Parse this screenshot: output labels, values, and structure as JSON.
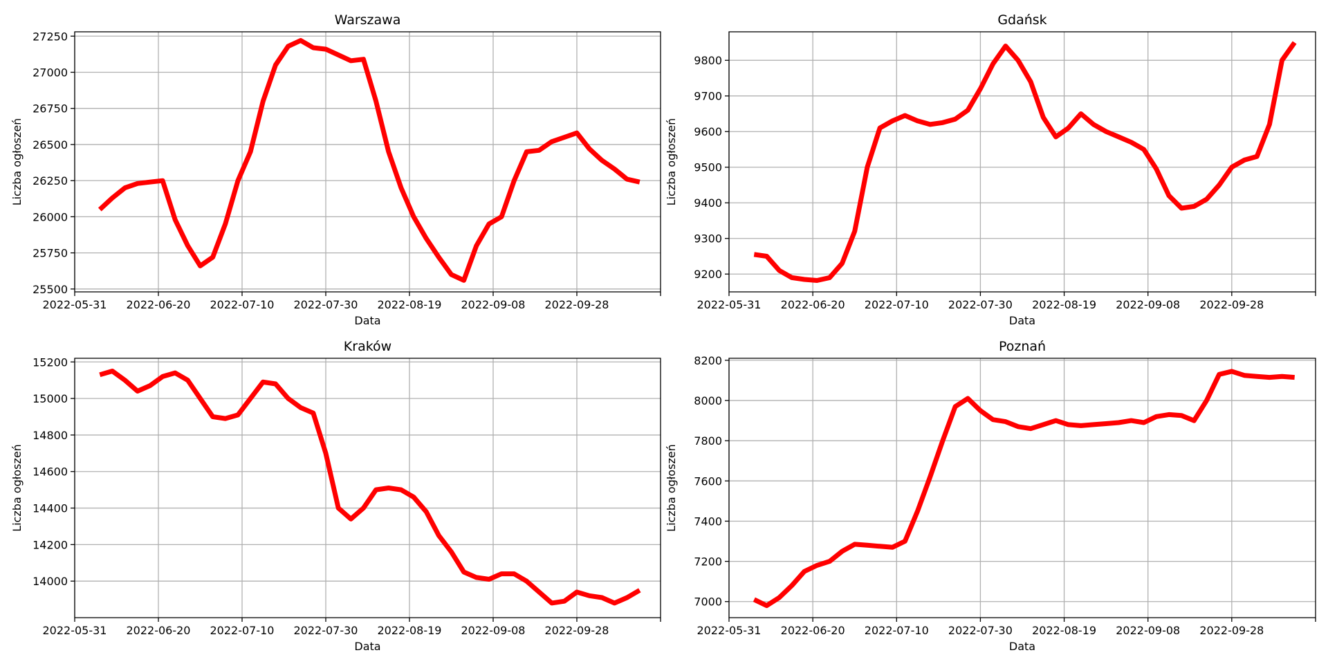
{
  "chart_data": [
    {
      "type": "line",
      "title": "Warszawa",
      "xlabel": "Data",
      "ylabel": "Liczba ogłoszeń",
      "grid": true,
      "line_color": "#ff0000",
      "xlim": [
        "2022-05-31",
        "2022-10-18"
      ],
      "ylim": [
        25480,
        27280
      ],
      "xticks": [
        "2022-05-31",
        "2022-06-20",
        "2022-07-10",
        "2022-07-30",
        "2022-08-19",
        "2022-09-08",
        "2022-09-28"
      ],
      "yticks": [
        25500,
        25750,
        26000,
        26250,
        26500,
        26750,
        27000,
        27250
      ],
      "x": [
        "2022-06-06",
        "2022-06-09",
        "2022-06-12",
        "2022-06-15",
        "2022-06-18",
        "2022-06-21",
        "2022-06-24",
        "2022-06-27",
        "2022-06-30",
        "2022-07-03",
        "2022-07-06",
        "2022-07-09",
        "2022-07-12",
        "2022-07-15",
        "2022-07-18",
        "2022-07-21",
        "2022-07-24",
        "2022-07-27",
        "2022-07-30",
        "2022-08-02",
        "2022-08-05",
        "2022-08-08",
        "2022-08-11",
        "2022-08-14",
        "2022-08-17",
        "2022-08-20",
        "2022-08-23",
        "2022-08-26",
        "2022-08-29",
        "2022-09-01",
        "2022-09-04",
        "2022-09-07",
        "2022-09-10",
        "2022-09-13",
        "2022-09-16",
        "2022-09-19",
        "2022-09-22",
        "2022-09-25",
        "2022-09-28",
        "2022-10-01",
        "2022-10-04",
        "2022-10-07",
        "2022-10-10",
        "2022-10-13"
      ],
      "y": [
        26050,
        26130,
        26200,
        26230,
        26240,
        26250,
        25980,
        25800,
        25660,
        25720,
        25950,
        26250,
        26450,
        26800,
        27050,
        27180,
        27220,
        27170,
        27160,
        27120,
        27080,
        27090,
        26800,
        26450,
        26200,
        26000,
        25850,
        25720,
        25600,
        25560,
        25800,
        25950,
        26000,
        26250,
        26450,
        26460,
        26520,
        26550,
        26580,
        26470,
        26390,
        26330,
        26260,
        26240
      ]
    },
    {
      "type": "line",
      "title": "Gdańsk",
      "xlabel": "Data",
      "ylabel": "Liczba ogłoszeń",
      "grid": true,
      "line_color": "#ff0000",
      "xlim": [
        "2022-05-31",
        "2022-10-18"
      ],
      "ylim": [
        9150,
        9880
      ],
      "xticks": [
        "2022-05-31",
        "2022-06-20",
        "2022-07-10",
        "2022-07-30",
        "2022-08-19",
        "2022-09-08",
        "2022-09-28"
      ],
      "yticks": [
        9200,
        9300,
        9400,
        9500,
        9600,
        9700,
        9800
      ],
      "x": [
        "2022-06-06",
        "2022-06-09",
        "2022-06-12",
        "2022-06-15",
        "2022-06-18",
        "2022-06-21",
        "2022-06-24",
        "2022-06-27",
        "2022-06-30",
        "2022-07-03",
        "2022-07-06",
        "2022-07-09",
        "2022-07-12",
        "2022-07-15",
        "2022-07-18",
        "2022-07-21",
        "2022-07-24",
        "2022-07-27",
        "2022-07-30",
        "2022-08-02",
        "2022-08-05",
        "2022-08-08",
        "2022-08-11",
        "2022-08-14",
        "2022-08-17",
        "2022-08-20",
        "2022-08-23",
        "2022-08-26",
        "2022-08-29",
        "2022-09-01",
        "2022-09-04",
        "2022-09-07",
        "2022-09-10",
        "2022-09-13",
        "2022-09-16",
        "2022-09-19",
        "2022-09-22",
        "2022-09-25",
        "2022-09-28",
        "2022-10-01",
        "2022-10-04",
        "2022-10-07",
        "2022-10-10",
        "2022-10-13"
      ],
      "y": [
        9255,
        9250,
        9210,
        9190,
        9185,
        9182,
        9190,
        9230,
        9320,
        9500,
        9610,
        9630,
        9645,
        9630,
        9620,
        9625,
        9635,
        9660,
        9720,
        9790,
        9840,
        9800,
        9740,
        9640,
        9585,
        9610,
        9650,
        9620,
        9600,
        9585,
        9570,
        9550,
        9495,
        9420,
        9385,
        9390,
        9410,
        9450,
        9500,
        9520,
        9530,
        9620,
        9800,
        9850
      ]
    },
    {
      "type": "line",
      "title": "Kraków",
      "xlabel": "Data",
      "ylabel": "Liczba ogłoszeń",
      "grid": true,
      "line_color": "#ff0000",
      "xlim": [
        "2022-05-31",
        "2022-10-18"
      ],
      "ylim": [
        13800,
        15220
      ],
      "xticks": [
        "2022-05-31",
        "2022-06-20",
        "2022-07-10",
        "2022-07-30",
        "2022-08-19",
        "2022-09-08",
        "2022-09-28"
      ],
      "yticks": [
        14000,
        14200,
        14400,
        14600,
        14800,
        15000,
        15200
      ],
      "x": [
        "2022-06-06",
        "2022-06-09",
        "2022-06-12",
        "2022-06-15",
        "2022-06-18",
        "2022-06-21",
        "2022-06-24",
        "2022-06-27",
        "2022-06-30",
        "2022-07-03",
        "2022-07-06",
        "2022-07-09",
        "2022-07-12",
        "2022-07-15",
        "2022-07-18",
        "2022-07-21",
        "2022-07-24",
        "2022-07-27",
        "2022-07-30",
        "2022-08-02",
        "2022-08-05",
        "2022-08-08",
        "2022-08-11",
        "2022-08-14",
        "2022-08-17",
        "2022-08-20",
        "2022-08-23",
        "2022-08-26",
        "2022-08-29",
        "2022-09-01",
        "2022-09-04",
        "2022-09-07",
        "2022-09-10",
        "2022-09-13",
        "2022-09-16",
        "2022-09-19",
        "2022-09-22",
        "2022-09-25",
        "2022-09-28",
        "2022-10-01",
        "2022-10-04",
        "2022-10-07",
        "2022-10-10",
        "2022-10-13"
      ],
      "y": [
        15130,
        15150,
        15100,
        15040,
        15070,
        15120,
        15140,
        15100,
        15000,
        14900,
        14890,
        14910,
        15000,
        15090,
        15080,
        15000,
        14950,
        14920,
        14700,
        14400,
        14340,
        14400,
        14500,
        14510,
        14500,
        14460,
        14380,
        14250,
        14160,
        14050,
        14020,
        14010,
        14040,
        14040,
        14000,
        13940,
        13880,
        13890,
        13940,
        13920,
        13910,
        13880,
        13910,
        13950
      ]
    },
    {
      "type": "line",
      "title": "Poznań",
      "xlabel": "Data",
      "ylabel": "Liczba ogłoszeń",
      "grid": true,
      "line_color": "#ff0000",
      "xlim": [
        "2022-05-31",
        "2022-10-18"
      ],
      "ylim": [
        6920,
        8210
      ],
      "xticks": [
        "2022-05-31",
        "2022-06-20",
        "2022-07-10",
        "2022-07-30",
        "2022-08-19",
        "2022-09-08",
        "2022-09-28"
      ],
      "yticks": [
        7000,
        7200,
        7400,
        7600,
        7800,
        8000,
        8200
      ],
      "x": [
        "2022-06-06",
        "2022-06-09",
        "2022-06-12",
        "2022-06-15",
        "2022-06-18",
        "2022-06-21",
        "2022-06-24",
        "2022-06-27",
        "2022-06-30",
        "2022-07-03",
        "2022-07-06",
        "2022-07-09",
        "2022-07-12",
        "2022-07-15",
        "2022-07-18",
        "2022-07-21",
        "2022-07-24",
        "2022-07-27",
        "2022-07-30",
        "2022-08-02",
        "2022-08-05",
        "2022-08-08",
        "2022-08-11",
        "2022-08-14",
        "2022-08-17",
        "2022-08-20",
        "2022-08-23",
        "2022-08-26",
        "2022-08-29",
        "2022-09-01",
        "2022-09-04",
        "2022-09-07",
        "2022-09-10",
        "2022-09-13",
        "2022-09-16",
        "2022-09-19",
        "2022-09-22",
        "2022-09-25",
        "2022-09-28",
        "2022-10-01",
        "2022-10-04",
        "2022-10-07",
        "2022-10-10",
        "2022-10-13"
      ],
      "y": [
        7010,
        6980,
        7020,
        7080,
        7150,
        7180,
        7200,
        7250,
        7285,
        7280,
        7275,
        7270,
        7300,
        7450,
        7620,
        7800,
        7970,
        8010,
        7950,
        7905,
        7895,
        7870,
        7860,
        7880,
        7900,
        7880,
        7875,
        7880,
        7885,
        7890,
        7900,
        7890,
        7920,
        7930,
        7925,
        7900,
        8000,
        8130,
        8145,
        8125,
        8120,
        8115,
        8120,
        8115
      ]
    }
  ]
}
